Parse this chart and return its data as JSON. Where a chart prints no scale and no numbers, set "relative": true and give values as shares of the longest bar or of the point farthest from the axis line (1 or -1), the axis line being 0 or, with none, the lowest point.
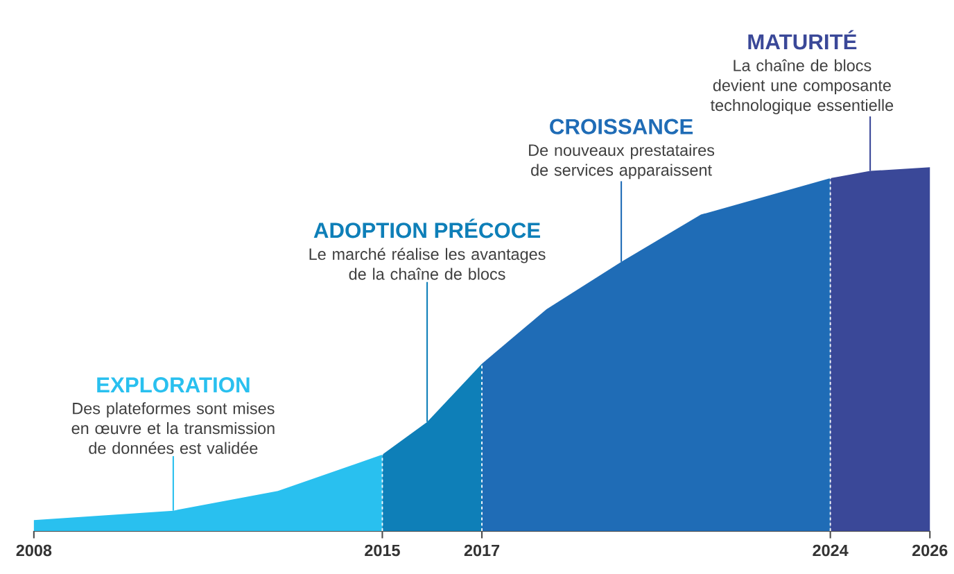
{
  "chart_data": {
    "type": "area",
    "relative": true,
    "marker": "none",
    "xlim": [
      2008,
      2026
    ],
    "xticks": [
      2008,
      2015,
      2017,
      2024,
      2026
    ],
    "series": [
      {
        "color": "#29c0ef",
        "x": [
          2008,
          2010.8,
          2012.9,
          2015
        ],
        "values": [
          0.03,
          0.056,
          0.11,
          0.21
        ]
      },
      {
        "color": "#0e7fb8",
        "x": [
          2015,
          2015.9,
          2017
        ],
        "values": [
          0.21,
          0.3,
          0.46
        ]
      },
      {
        "color": "#1f6cb6",
        "x": [
          2017,
          2018.3,
          2019.8,
          2021.4,
          2024
        ],
        "values": [
          0.46,
          0.61,
          0.74,
          0.87,
          0.97
        ]
      },
      {
        "color": "#3a4898",
        "x": [
          2024,
          2024.8,
          2026
        ],
        "values": [
          0.97,
          0.99,
          1.0
        ]
      }
    ],
    "ref_lines": [
      {
        "axis": "x",
        "value": 2015,
        "color": "#ffffff",
        "line_style": "dotted"
      },
      {
        "axis": "x",
        "value": 2017,
        "color": "#ffffff",
        "line_style": "dotted"
      },
      {
        "axis": "x",
        "value": 2024,
        "color": "#ffffff",
        "line_style": "dotted"
      }
    ],
    "annotations": [
      "EXPLORATION",
      {
        "text": "Des plateformes sont mises en œuvre et la transmission de données est validée",
        "x": 2010.8,
        "y": 0.056
      },
      "ADOPTION PRÉCOCE",
      {
        "text": "Le marché réalise les avantages de la chaîne de blocs",
        "x": 2015.9,
        "y": 0.3
      },
      "CROISSANCE",
      {
        "text": "De nouveaux prestataires de services apparaissent",
        "x": 2019.8,
        "y": 0.74
      },
      "MATURITÉ",
      {
        "text": "La chaîne de blocs devient une composante technologique essentielle",
        "x": 2024.8,
        "y": 0.99
      }
    ]
  }
}
